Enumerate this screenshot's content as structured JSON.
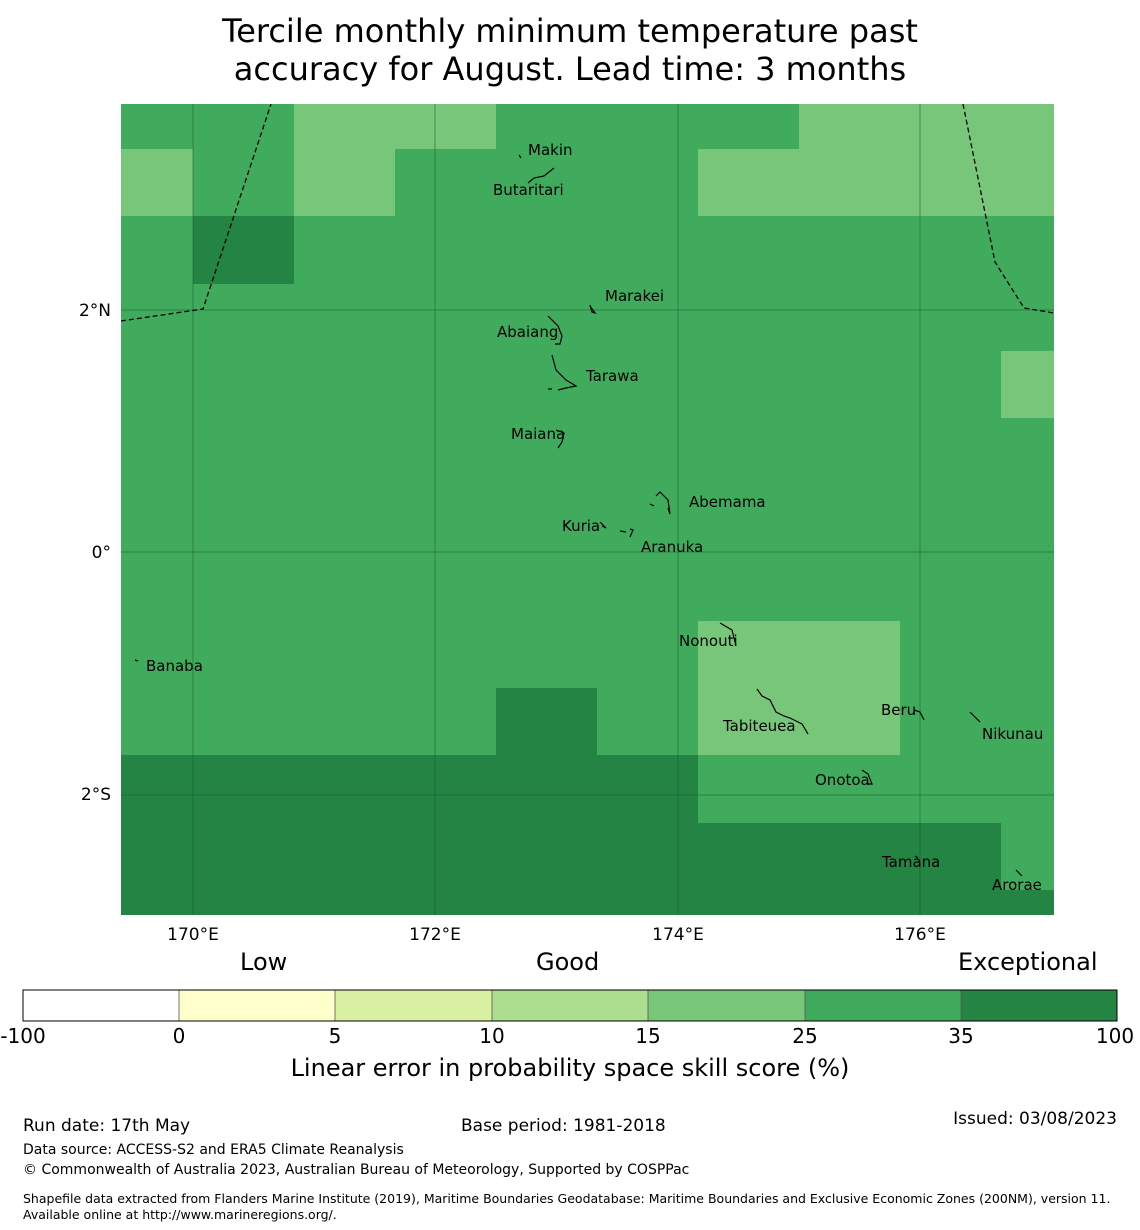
{
  "title": {
    "line1": "Tercile monthly minimum temperature past",
    "line2": "accuracy for August. Lead time: 3 months"
  },
  "map": {
    "lat_labels": [
      "2°N",
      "0°",
      "2°S"
    ],
    "lon_labels": [
      "170°E",
      "172°E",
      "174°E",
      "176°E"
    ],
    "islands": [
      "Makin",
      "Butaritari",
      "Marakei",
      "Abaiang",
      "Tarawa",
      "Maiana",
      "Abemama",
      "Kuria",
      "Aranuka",
      "Nonouti",
      "Banaba",
      "Tabiteuea",
      "Beru",
      "Nikunau",
      "Onotoa",
      "Tamana",
      "Arorae"
    ],
    "colors": {
      "c15_25": "#78c679",
      "c25_35": "#41ab5d",
      "c35_100": "#238443",
      "grid": "#1a5e2e"
    }
  },
  "colorbar": {
    "category_labels": {
      "low": "Low",
      "good": "Good",
      "exceptional": "Exceptional"
    },
    "ticks": [
      "-100",
      "0",
      "5",
      "10",
      "15",
      "25",
      "35",
      "100"
    ],
    "colors": [
      "#ffffff",
      "#ffffcc",
      "#d9f0a3",
      "#addd8e",
      "#78c679",
      "#41ab5d",
      "#238443"
    ],
    "label": "Linear error in probability space skill score (%)"
  },
  "footer": {
    "run_date": "Run date: 17th May",
    "base_period": "Base period: 1981-2018",
    "issued": "Issued: 03/08/2023",
    "data_source": "Data source: ACCESS-S2 and ERA5 Climate Reanalysis",
    "copyright": "© Commonwealth of Australia 2023, Australian Bureau of Meteorology, Supported by COSPPac",
    "shapefile": "Shapefile data extracted from Flanders Marine Institute (2019), Maritime Boundaries Geodatabase: Maritime Boundaries and Exclusive Economic Zones (200NM), version 11. Available online at http://www.marineregions.org/."
  }
}
